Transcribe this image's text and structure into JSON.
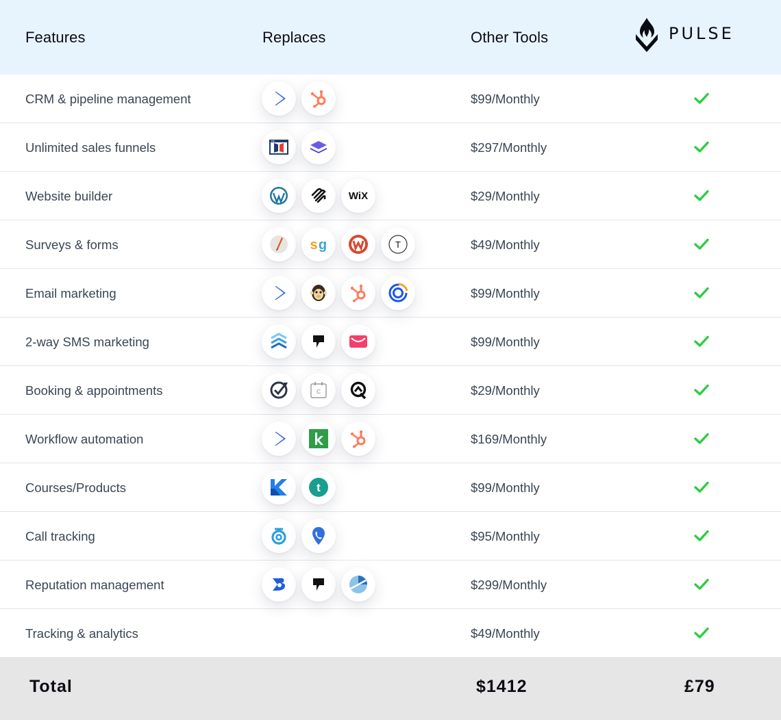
{
  "header": {
    "features": "Features",
    "replaces": "Replaces",
    "other_tools": "Other Tools",
    "brand": "PULSE",
    "brand_icon": "pulse-flame-logo"
  },
  "colors": {
    "header_bg": "#e8f4fd",
    "check": "#2ecc40",
    "footer_bg": "#e6e6e6",
    "text": "#3a4556"
  },
  "rows": [
    {
      "feature": "CRM & pipeline management",
      "price": "$99/Monthly",
      "logos": [
        "activecampaign",
        "hubspot"
      ]
    },
    {
      "feature": "Unlimited sales funnels",
      "price": "$297/Monthly",
      "logos": [
        "clickfunnels",
        "layers"
      ]
    },
    {
      "feature": "Website builder",
      "price": "$29/Monthly",
      "logos": [
        "wordpress",
        "squarespace",
        "wix"
      ]
    },
    {
      "feature": "Surveys & forms",
      "price": "$49/Monthly",
      "logos": [
        "jotform-pencil",
        "surveygizmo",
        "wufoo",
        "typeform"
      ]
    },
    {
      "feature": "Email marketing",
      "price": "$99/Monthly",
      "logos": [
        "activecampaign",
        "mailchimp",
        "hubspot",
        "constant-contact"
      ]
    },
    {
      "feature": "2-way SMS marketing",
      "price": "$99/Monthly",
      "logos": [
        "sms-chevrons",
        "podium",
        "sms-envelope"
      ]
    },
    {
      "feature": "Booking & appointments",
      "price": "$29/Monthly",
      "logos": [
        "acuity",
        "calendly",
        "q-scheduler"
      ]
    },
    {
      "feature": "Workflow automation",
      "price": "$169/Monthly",
      "logos": [
        "activecampaign",
        "keap",
        "hubspot"
      ]
    },
    {
      "feature": "Courses/Products",
      "price": "$99/Monthly",
      "logos": [
        "kajabi",
        "teachable"
      ]
    },
    {
      "feature": "Call tracking",
      "price": "$95/Monthly",
      "logos": [
        "callrail",
        "phone-pin"
      ]
    },
    {
      "feature": "Reputation management",
      "price": "$299/Monthly",
      "logos": [
        "birdeye",
        "podium",
        "yext"
      ]
    },
    {
      "feature": "Tracking & analytics",
      "price": "$49/Monthly",
      "logos": []
    }
  ],
  "footer": {
    "label": "Total",
    "other_total": "$1412",
    "pulse_total": "£79"
  }
}
